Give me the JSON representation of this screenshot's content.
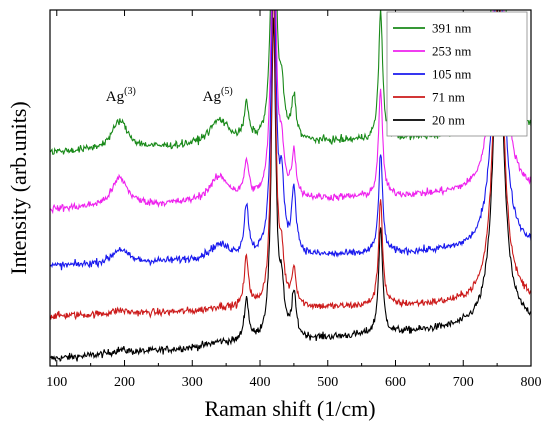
{
  "chart_data": {
    "type": "line",
    "xlabel": "Raman shift (1/cm)",
    "ylabel": "Intensity (arb.units)",
    "xlim": [
      90,
      800
    ],
    "x_ticks": [
      100,
      200,
      300,
      400,
      500,
      600,
      700,
      800
    ],
    "y_tick_labels": false,
    "grid": false,
    "legend_position": "top-right",
    "annotations": [
      {
        "base": "Ag",
        "sup": "(3)",
        "x": 193
      },
      {
        "base": "Ag",
        "sup": "(5)",
        "x": 336
      }
    ],
    "peaks": [
      {
        "x": 193,
        "w": 14
      },
      {
        "x": 340,
        "w": 18
      },
      {
        "x": 380,
        "w": 4
      },
      {
        "x": 420,
        "w": 4
      },
      {
        "x": 432,
        "w": 4
      },
      {
        "x": 450,
        "w": 4
      },
      {
        "x": 578,
        "w": 3.5
      },
      {
        "x": 752,
        "w": 9
      }
    ],
    "series": [
      {
        "name": "391 nm",
        "color": "#1a8a1a",
        "offset": 0.6,
        "baseline_slope": 0.05,
        "amps": [
          0.08,
          0.07,
          0.1,
          0.9,
          0.12,
          0.12,
          0.36,
          0.9
        ]
      },
      {
        "name": "253 nm",
        "color": "#ee22ee",
        "offset": 0.44,
        "baseline_slope": 0.05,
        "amps": [
          0.08,
          0.07,
          0.1,
          0.9,
          0.12,
          0.12,
          0.3,
          0.9
        ]
      },
      {
        "name": "105 nm",
        "color": "#1a1aee",
        "offset": 0.28,
        "baseline_slope": 0.05,
        "amps": [
          0.04,
          0.04,
          0.14,
          0.9,
          0.18,
          0.18,
          0.28,
          0.9
        ]
      },
      {
        "name": "71 nm",
        "color": "#cc1a1a",
        "offset": 0.14,
        "baseline_slope": 0.04,
        "amps": [
          0.01,
          0.01,
          0.14,
          0.9,
          0.12,
          0.1,
          0.3,
          0.9
        ]
      },
      {
        "name": "20 nm",
        "color": "#000000",
        "offset": 0.02,
        "baseline_slope": 0.1,
        "amps": [
          0.01,
          0.01,
          0.12,
          0.9,
          0.12,
          0.12,
          0.3,
          0.9
        ]
      }
    ]
  }
}
